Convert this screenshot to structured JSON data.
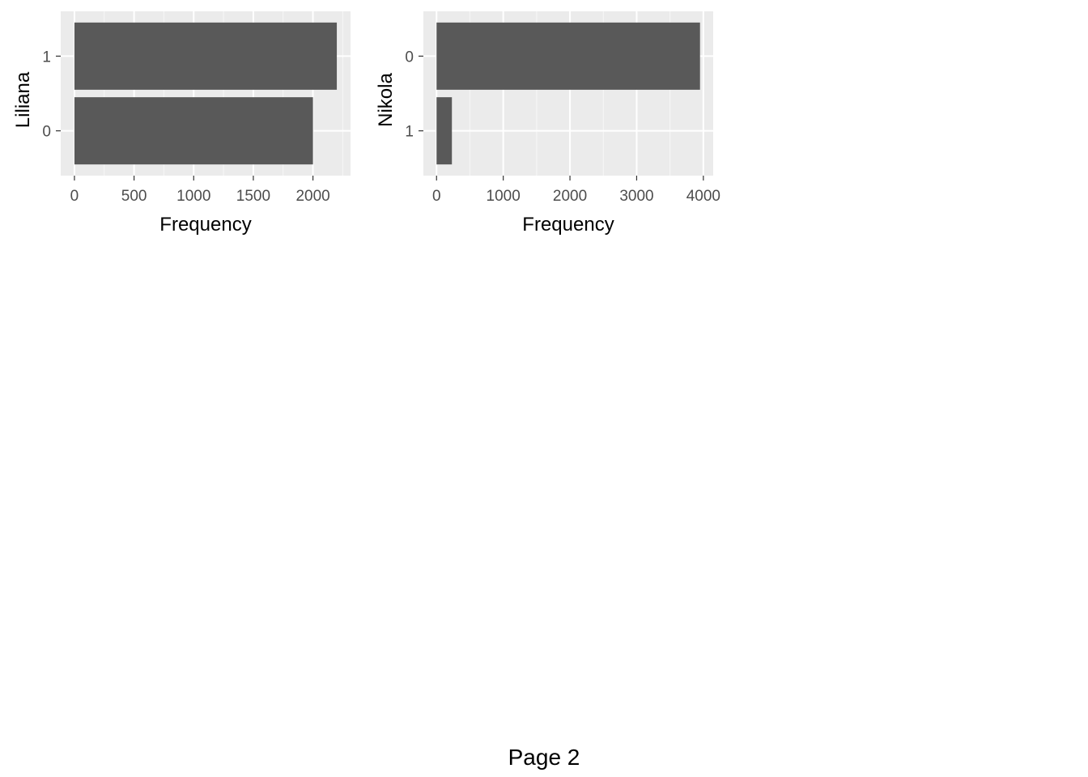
{
  "chart_data": [
    {
      "type": "bar",
      "orientation": "horizontal",
      "ylabel": "Liliana",
      "xlabel": "Frequency",
      "categories": [
        "1",
        "0"
      ],
      "values": [
        2200,
        2000
      ],
      "xlim": [
        -115,
        2315
      ],
      "xticks": [
        0,
        500,
        1000,
        1500,
        2000
      ],
      "grid": true,
      "bar_color": "#595959",
      "panel_background": "#ebebeb"
    },
    {
      "type": "bar",
      "orientation": "horizontal",
      "ylabel": "Nikola",
      "xlabel": "Frequency",
      "categories": [
        "0",
        "1"
      ],
      "values": [
        3950,
        230
      ],
      "xlim": [
        -197.5,
        4147.5
      ],
      "xticks": [
        0,
        1000,
        2000,
        3000,
        4000
      ],
      "grid": true,
      "bar_color": "#595959",
      "panel_background": "#ebebeb"
    }
  ],
  "footer": {
    "text": "Page 2"
  }
}
